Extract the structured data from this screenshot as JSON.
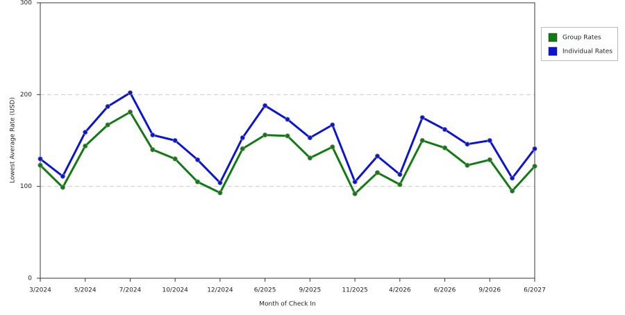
{
  "chart_data": {
    "type": "line",
    "x_label": "Month of Check In",
    "y_label": "Lowest Average Rate (USD)",
    "categories": [
      "3/2024",
      null,
      "5/2024",
      null,
      "7/2024",
      null,
      "10/2024",
      null,
      "12/2024",
      null,
      "6/2025",
      null,
      "9/2025",
      null,
      "11/2025",
      null,
      "4/2026",
      null,
      "6/2026",
      null,
      "9/2026",
      null,
      "6/2027"
    ],
    "series": [
      {
        "name": "Group Rates",
        "color": "#117a11",
        "values": [
          123,
          99,
          144,
          167,
          181,
          140,
          130,
          105,
          93,
          141,
          156,
          155,
          131,
          143,
          92,
          115,
          102,
          150,
          142,
          123,
          129,
          95,
          122
        ]
      },
      {
        "name": "Individual Rates",
        "color": "#0a14d2",
        "values": [
          130,
          111,
          159,
          187,
          202,
          156,
          150,
          129,
          104,
          153,
          188,
          173,
          153,
          167,
          105,
          133,
          113,
          175,
          162,
          146,
          150,
          109,
          141
        ]
      }
    ],
    "ylim": [
      0,
      300
    ],
    "yticks": [
      0,
      100,
      200,
      300
    ],
    "grid": true,
    "legend": "right"
  }
}
